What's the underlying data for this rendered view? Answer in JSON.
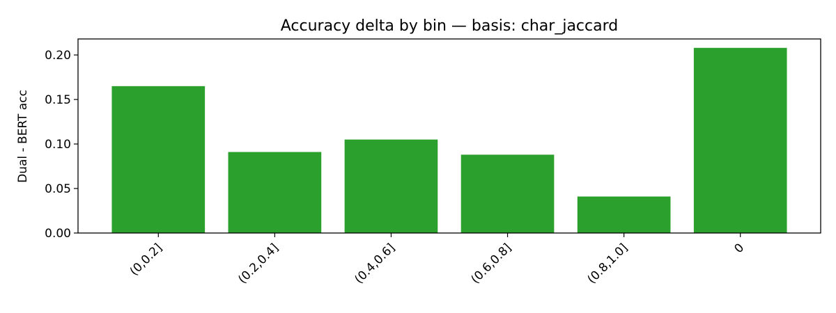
{
  "chart_data": {
    "type": "bar",
    "title": "Accuracy delta by bin — basis: char_jaccard",
    "xlabel": "",
    "ylabel": "Dual - BERT acc",
    "categories": [
      "(0,0.2]",
      "(0.2,0.4]",
      "(0.4,0.6]",
      "(0.6,0.8]",
      "(0.8,1.0]",
      "0"
    ],
    "values": [
      0.165,
      0.091,
      0.105,
      0.088,
      0.041,
      0.208
    ],
    "ylim": [
      0,
      0.218
    ],
    "yticks": [
      0.0,
      0.05,
      0.1,
      0.15,
      0.2
    ],
    "ytick_labels": [
      "0.00",
      "0.05",
      "0.10",
      "0.15",
      "0.20"
    ],
    "grid": false,
    "legend": "none",
    "bar_color": "#2ca02c"
  }
}
